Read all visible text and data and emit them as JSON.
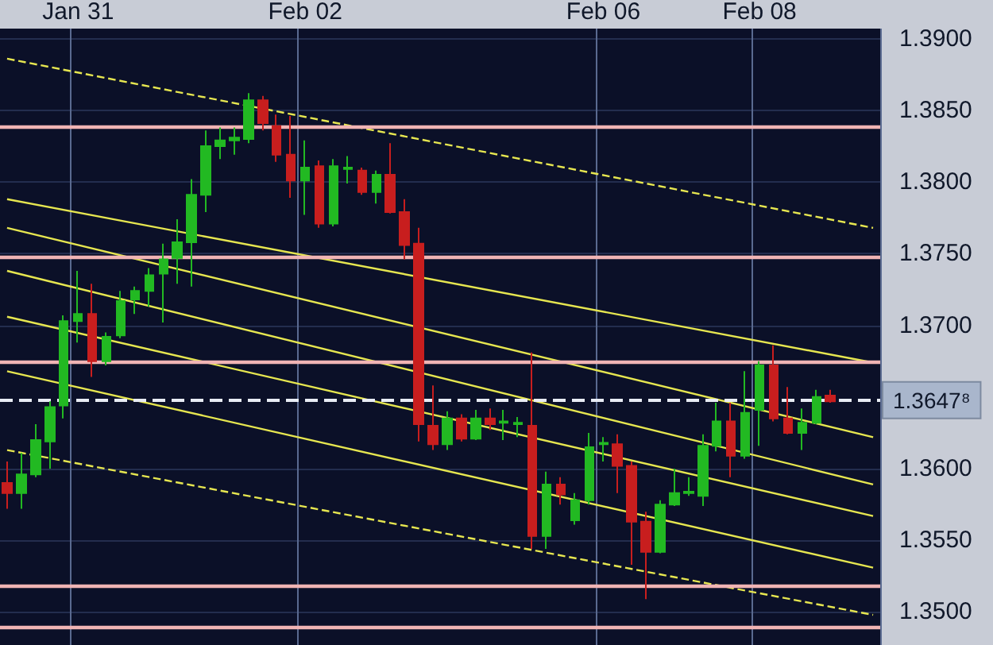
{
  "chart_data": {
    "type": "candlestick",
    "categories": [
      null,
      null,
      null,
      null,
      null,
      "Jan 31",
      null,
      null,
      null,
      null,
      null,
      null,
      null,
      null,
      null,
      null,
      null,
      null,
      null,
      null,
      null,
      "Feb 02",
      null,
      null,
      null,
      null,
      null,
      null,
      null,
      null,
      null,
      null,
      null,
      null,
      null,
      null,
      null,
      null,
      null,
      null,
      null,
      null,
      "Feb 06",
      null,
      null,
      null,
      null,
      null,
      null,
      null,
      null,
      null,
      null,
      "Feb 08",
      null,
      null,
      null,
      null,
      null,
      null,
      null,
      null
    ],
    "ohlc": [
      [
        1.359,
        1.3605,
        1.3572,
        1.3583
      ],
      [
        1.3583,
        1.3611,
        1.3572,
        1.3596
      ],
      [
        1.3596,
        1.3631,
        1.3594,
        1.362
      ],
      [
        1.3619,
        1.3647,
        1.36,
        1.3643
      ],
      [
        1.3644,
        1.3707,
        1.3635,
        1.3703
      ],
      [
        1.3703,
        1.3738,
        1.3688,
        1.3708
      ],
      [
        1.3708,
        1.3729,
        1.3664,
        1.3675
      ],
      [
        1.3675,
        1.3695,
        1.3672,
        1.3692
      ],
      [
        1.3693,
        1.3724,
        1.3691,
        1.3717
      ],
      [
        1.3718,
        1.3727,
        1.3708,
        1.3724
      ],
      [
        1.3724,
        1.374,
        1.3713,
        1.3735
      ],
      [
        1.3736,
        1.3757,
        1.3702,
        1.3746
      ],
      [
        1.3747,
        1.3774,
        1.3729,
        1.3758
      ],
      [
        1.3758,
        1.3802,
        1.3727,
        1.3791
      ],
      [
        1.3791,
        1.3836,
        1.3779,
        1.3825
      ],
      [
        1.3825,
        1.3838,
        1.3816,
        1.3829
      ],
      [
        1.3829,
        1.3838,
        1.3819,
        1.3831
      ],
      [
        1.383,
        1.3862,
        1.3827,
        1.3857
      ],
      [
        1.3857,
        1.386,
        1.3836,
        1.3841
      ],
      [
        1.3839,
        1.3847,
        1.3814,
        1.3819
      ],
      [
        1.3819,
        1.3846,
        1.3789,
        1.3801
      ],
      [
        1.3801,
        1.3829,
        1.3777,
        1.381
      ],
      [
        1.3811,
        1.3815,
        1.3768,
        1.3771
      ],
      [
        1.3771,
        1.3816,
        1.3769,
        1.3811
      ],
      [
        1.3809,
        1.3818,
        1.3799,
        1.381
      ],
      [
        1.3808,
        1.381,
        1.3791,
        1.3793
      ],
      [
        1.3793,
        1.3808,
        1.3785,
        1.3805
      ],
      [
        1.3805,
        1.3827,
        1.3778,
        1.3779
      ],
      [
        1.3779,
        1.3788,
        1.3746,
        1.3756
      ],
      [
        1.3757,
        1.3768,
        1.3619,
        1.3631
      ],
      [
        1.363,
        1.3658,
        1.3613,
        1.3617
      ],
      [
        1.3617,
        1.364,
        1.3613,
        1.3635
      ],
      [
        1.3635,
        1.3638,
        1.3619,
        1.3621
      ],
      [
        1.3621,
        1.3641,
        1.362,
        1.3635
      ],
      [
        1.3635,
        1.3642,
        1.3627,
        1.3631
      ],
      [
        1.3632,
        1.3641,
        1.362,
        1.3633
      ],
      [
        1.3631,
        1.3636,
        1.3622,
        1.3632
      ],
      [
        1.363,
        1.3681,
        1.3544,
        1.3553
      ],
      [
        1.3553,
        1.3598,
        1.3544,
        1.3589
      ],
      [
        1.3589,
        1.3594,
        1.3575,
        1.3582
      ],
      [
        1.3564,
        1.3583,
        1.3561,
        1.3578
      ],
      [
        1.3578,
        1.3625,
        1.3575,
        1.3615
      ],
      [
        1.3617,
        1.3622,
        1.3605,
        1.3618
      ],
      [
        1.3617,
        1.3624,
        1.3583,
        1.3602
      ],
      [
        1.3602,
        1.3605,
        1.3533,
        1.3563
      ],
      [
        1.3563,
        1.357,
        1.3509,
        1.3542
      ],
      [
        1.3542,
        1.3578,
        1.3541,
        1.3575
      ],
      [
        1.3575,
        1.36,
        1.3574,
        1.3583
      ],
      [
        1.3583,
        1.3594,
        1.3581,
        1.3584
      ],
      [
        1.3581,
        1.3624,
        1.3574,
        1.3616
      ],
      [
        1.3616,
        1.3646,
        1.3612,
        1.3633
      ],
      [
        1.3633,
        1.3646,
        1.3594,
        1.3609
      ],
      [
        1.3609,
        1.3668,
        1.3607,
        1.3639
      ],
      [
        1.3641,
        1.3675,
        1.3616,
        1.3672
      ],
      [
        1.3672,
        1.3686,
        1.3633,
        1.3635
      ],
      [
        1.3635,
        1.3657,
        1.3624,
        1.3625
      ],
      [
        1.3625,
        1.3642,
        1.3613,
        1.3632
      ],
      [
        1.3632,
        1.3655,
        1.3631,
        1.365
      ],
      [
        1.3651,
        1.3655,
        1.3646,
        1.3647
      ],
      null,
      null,
      null
    ],
    "colors": [
      "#c81e1e",
      "#22b922",
      "#22b922",
      "#22b922",
      "#22b922",
      "#22b922",
      "#c81e1e",
      "#22b922",
      "#22b922",
      "#22b922",
      "#22b922",
      "#22b922",
      "#22b922",
      "#22b922",
      "#22b922",
      "#22b922",
      "#22b922",
      "#22b922",
      "#c81e1e",
      "#c81e1e",
      "#c81e1e",
      "#22b922",
      "#c81e1e",
      "#22b922",
      "#22b922",
      "#c81e1e",
      "#22b922",
      "#c81e1e",
      "#c81e1e",
      "#c81e1e",
      "#c81e1e",
      "#22b922",
      "#c81e1e",
      "#22b922",
      "#c81e1e",
      "#22b922",
      "#22b922",
      "#c81e1e",
      "#22b922",
      "#c81e1e",
      "#22b922",
      "#22b922",
      "#22b922",
      "#c81e1e",
      "#c81e1e",
      "#c81e1e",
      "#22b922",
      "#22b922",
      "#22b922",
      "#22b922",
      "#22b922",
      "#c81e1e",
      "#22b922",
      "#22b922",
      "#c81e1e",
      "#c81e1e",
      "#22b922",
      "#22b922",
      "#c81e1e",
      null,
      null,
      null
    ],
    "series": [
      {
        "type": "line",
        "color": "#e6e650",
        "line_style": "dashed",
        "values": [
          1.3886,
          null,
          null,
          null,
          null,
          null,
          null,
          null,
          null,
          null,
          null,
          null,
          null,
          null,
          null,
          null,
          null,
          null,
          null,
          null,
          null,
          null,
          null,
          null,
          null,
          null,
          null,
          null,
          null,
          null,
          null,
          null,
          null,
          null,
          null,
          null,
          null,
          null,
          null,
          null,
          null,
          null,
          null,
          null,
          null,
          null,
          null,
          null,
          null,
          null,
          null,
          null,
          null,
          null,
          null,
          null,
          null,
          null,
          null,
          null,
          null,
          1.3768
        ]
      },
      {
        "type": "line",
        "color": "#e6e650",
        "line_style": "solid",
        "values": [
          1.3788,
          null,
          null,
          null,
          null,
          null,
          null,
          null,
          null,
          null,
          null,
          null,
          null,
          null,
          null,
          null,
          null,
          null,
          null,
          null,
          null,
          null,
          null,
          null,
          null,
          null,
          null,
          null,
          null,
          null,
          null,
          null,
          null,
          null,
          null,
          null,
          null,
          null,
          null,
          null,
          null,
          null,
          null,
          null,
          null,
          null,
          null,
          null,
          null,
          null,
          null,
          null,
          null,
          null,
          null,
          null,
          null,
          null,
          null,
          null,
          null,
          1.3674
        ]
      },
      {
        "type": "line",
        "color": "#e6e650",
        "line_style": "solid",
        "values": [
          1.3768,
          null,
          null,
          null,
          null,
          null,
          null,
          null,
          null,
          null,
          null,
          null,
          null,
          null,
          null,
          null,
          null,
          null,
          null,
          null,
          null,
          null,
          null,
          null,
          null,
          null,
          null,
          null,
          null,
          null,
          null,
          null,
          null,
          null,
          null,
          null,
          null,
          null,
          null,
          null,
          null,
          null,
          null,
          null,
          null,
          null,
          null,
          null,
          null,
          null,
          null,
          null,
          null,
          null,
          null,
          null,
          null,
          null,
          null,
          null,
          null,
          1.3622
        ]
      },
      {
        "type": "line",
        "color": "#e6e650",
        "line_style": "solid",
        "values": [
          1.3738,
          null,
          null,
          null,
          null,
          null,
          null,
          null,
          null,
          null,
          null,
          null,
          null,
          null,
          null,
          null,
          null,
          null,
          null,
          null,
          null,
          null,
          null,
          null,
          null,
          null,
          null,
          null,
          null,
          null,
          null,
          null,
          null,
          null,
          null,
          null,
          null,
          null,
          null,
          null,
          null,
          null,
          null,
          null,
          null,
          null,
          null,
          null,
          null,
          null,
          null,
          null,
          null,
          null,
          null,
          null,
          null,
          null,
          null,
          null,
          null,
          1.3589
        ]
      },
      {
        "type": "line",
        "color": "#e6e650",
        "line_style": "solid",
        "values": [
          1.3706,
          null,
          null,
          null,
          null,
          null,
          null,
          null,
          null,
          null,
          null,
          null,
          null,
          null,
          null,
          null,
          null,
          null,
          null,
          null,
          null,
          null,
          null,
          null,
          null,
          null,
          null,
          null,
          null,
          null,
          null,
          null,
          null,
          null,
          null,
          null,
          null,
          null,
          null,
          null,
          null,
          null,
          null,
          null,
          null,
          null,
          null,
          null,
          null,
          null,
          null,
          null,
          null,
          null,
          null,
          null,
          null,
          null,
          null,
          null,
          null,
          1.3567
        ]
      },
      {
        "type": "line",
        "color": "#e6e650",
        "line_style": "solid",
        "values": [
          1.3668,
          null,
          null,
          null,
          null,
          null,
          null,
          null,
          null,
          null,
          null,
          null,
          null,
          null,
          null,
          null,
          null,
          null,
          null,
          null,
          null,
          null,
          null,
          null,
          null,
          null,
          null,
          null,
          null,
          null,
          null,
          null,
          null,
          null,
          null,
          null,
          null,
          null,
          null,
          null,
          null,
          null,
          null,
          null,
          null,
          null,
          null,
          null,
          null,
          null,
          null,
          null,
          null,
          null,
          null,
          null,
          null,
          null,
          null,
          null,
          null,
          1.3531
        ]
      },
      {
        "type": "line",
        "color": "#e6e650",
        "line_style": "dashed",
        "values": [
          1.3613,
          null,
          null,
          null,
          null,
          null,
          null,
          null,
          null,
          null,
          null,
          null,
          null,
          null,
          null,
          null,
          null,
          null,
          null,
          null,
          null,
          null,
          null,
          null,
          null,
          null,
          null,
          null,
          null,
          null,
          null,
          null,
          null,
          null,
          null,
          null,
          null,
          null,
          null,
          null,
          null,
          null,
          null,
          null,
          null,
          null,
          null,
          null,
          null,
          null,
          null,
          null,
          null,
          null,
          null,
          null,
          null,
          null,
          null,
          null,
          null,
          1.3498
        ]
      }
    ],
    "ylim": [
      1.3477,
      1.3907
    ],
    "yticks": [
      {
        "value": 1.35,
        "label": "1.3500"
      },
      {
        "value": 1.355,
        "label": "1.3550"
      },
      {
        "value": 1.36,
        "label": "1.3600"
      },
      {
        "value": 1.37,
        "label": "1.3700"
      },
      {
        "value": 1.375,
        "label": "1.3750"
      },
      {
        "value": 1.38,
        "label": "1.3800"
      },
      {
        "value": 1.385,
        "label": "1.3850"
      },
      {
        "value": 1.39,
        "label": "1.3900"
      }
    ],
    "ref_lines": [
      {
        "axis": "y",
        "value": 1.3839,
        "color": "#f0b4b4",
        "line_style": "solid"
      },
      {
        "axis": "y",
        "value": 1.3748,
        "color": "#f0b4b4",
        "line_style": "solid"
      },
      {
        "axis": "y",
        "value": 1.3674,
        "color": "#f0b4b4",
        "line_style": "solid"
      },
      {
        "axis": "y",
        "value": 1.3518,
        "color": "#f0b4b4",
        "line_style": "solid"
      },
      {
        "axis": "y",
        "value": 1.3489,
        "color": "#f0b4b4",
        "line_style": "solid"
      },
      {
        "axis": "y",
        "value": 1.36478,
        "label": "1.3647⁸",
        "color": "#e8ecf4",
        "line_style": "dashed"
      }
    ],
    "grid": true
  }
}
